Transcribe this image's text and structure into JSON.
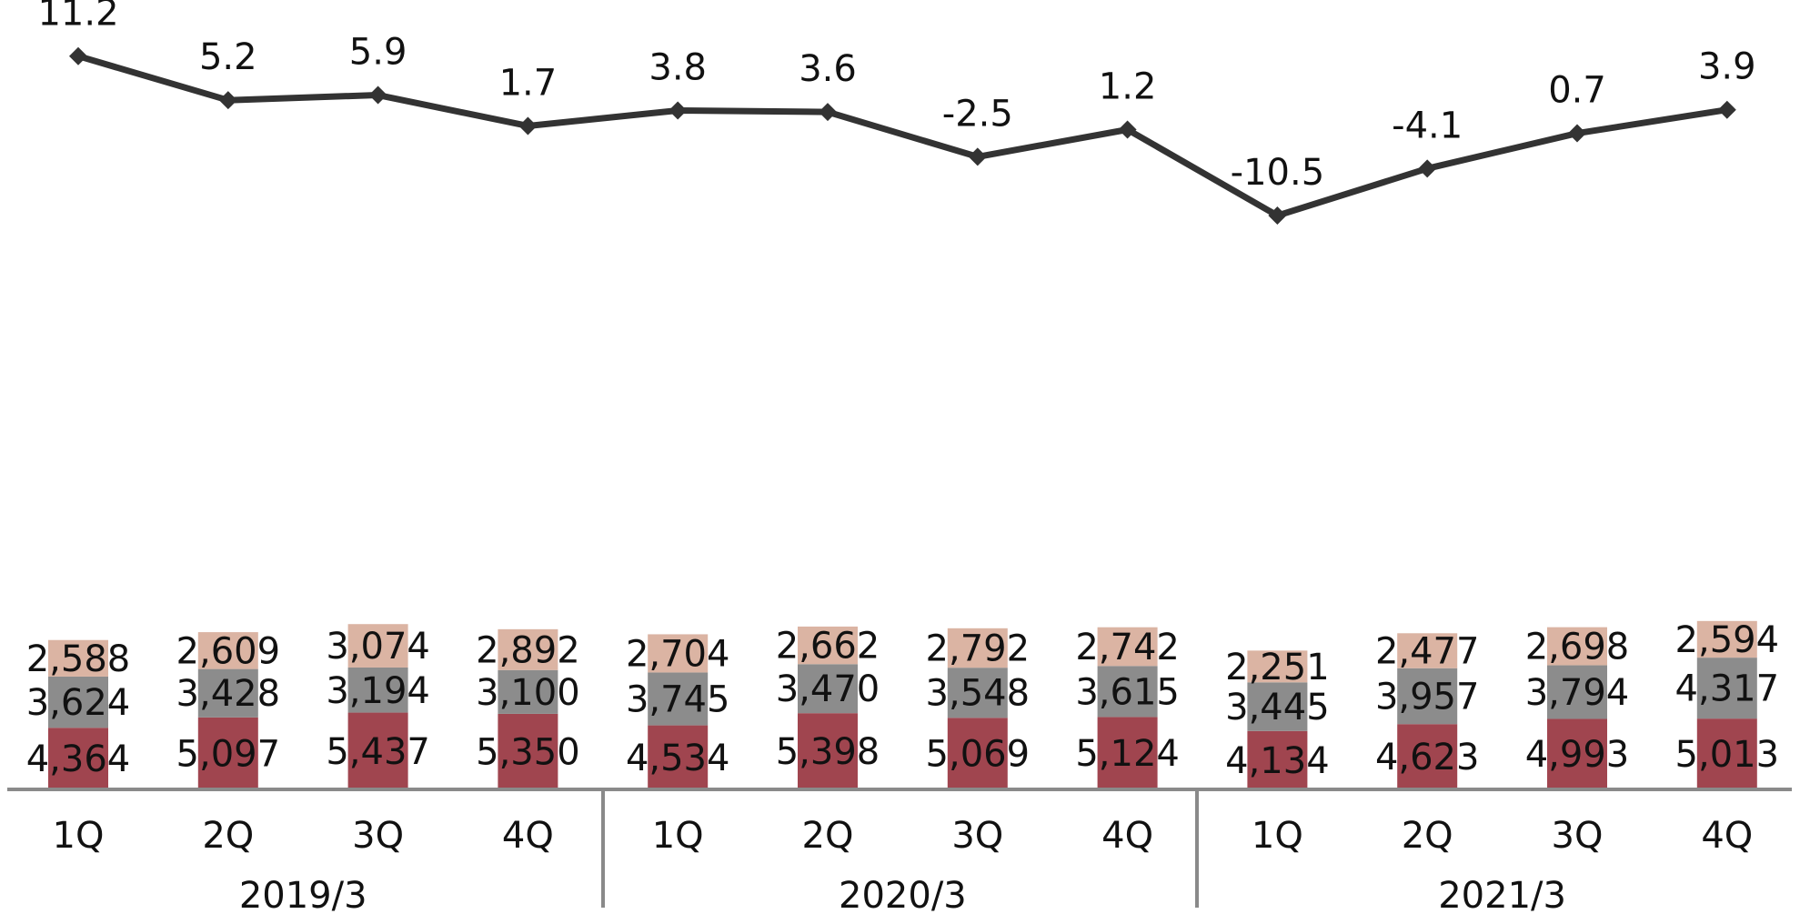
{
  "chart_data": {
    "type": "bar",
    "stacked": true,
    "groups": [
      {
        "label": "2019/3",
        "categories": [
          "1Q",
          "2Q",
          "3Q",
          "4Q"
        ]
      },
      {
        "label": "2020/3",
        "categories": [
          "1Q",
          "2Q",
          "3Q",
          "4Q"
        ]
      },
      {
        "label": "2021/3",
        "categories": [
          "1Q",
          "2Q",
          "3Q",
          "4Q"
        ]
      }
    ],
    "series": [
      {
        "color": "#a0454f",
        "values": [
          4364,
          5097,
          5437,
          5350,
          4534,
          5398,
          5069,
          5124,
          4134,
          4623,
          4993,
          5013
        ]
      },
      {
        "color": "#8c8c8c",
        "values": [
          3624,
          3428,
          3194,
          3100,
          3745,
          3470,
          3548,
          3615,
          3445,
          3957,
          3794,
          4317
        ]
      },
      {
        "color": "#dbb4a3",
        "values": [
          2588,
          2609,
          3074,
          2892,
          2704,
          2662,
          2792,
          2742,
          2251,
          2477,
          2698,
          2594
        ]
      }
    ],
    "line_series": {
      "type": "line",
      "color": "#333333",
      "values": [
        11.2,
        5.2,
        5.9,
        1.7,
        3.8,
        3.6,
        -2.5,
        1.2,
        -10.5,
        -4.1,
        0.7,
        3.9
      ]
    },
    "legend": "none",
    "grid": false
  }
}
